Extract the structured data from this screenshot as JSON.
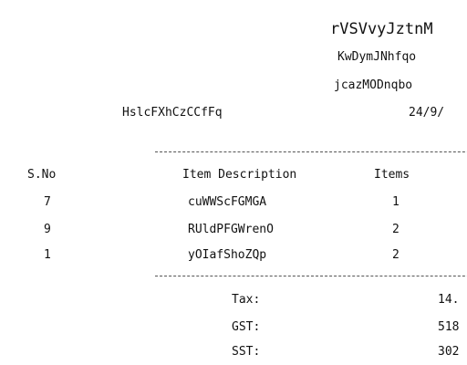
{
  "receipt": {
    "title": "rVSVvyJztnM",
    "line1": "KwDymJNhfqo",
    "line2": "jcazMODnqbo",
    "left_header": "HslcFXhCzCCfFq",
    "date": "24/9/"
  },
  "table": {
    "headers": {
      "sn": "S.No",
      "desc": "Item Description",
      "items": "Items"
    },
    "rows": [
      {
        "sn": "7",
        "desc": "cuWWScFGMGA",
        "items": "1"
      },
      {
        "sn": "9",
        "desc": "RUldPFGWrenO",
        "items": "2"
      },
      {
        "sn": "1",
        "desc": "yOIafShoZQp",
        "items": "2"
      }
    ]
  },
  "summary": [
    {
      "label": "Tax:",
      "value": "14."
    },
    {
      "label": "GST:",
      "value": "518"
    },
    {
      "label": "SST:",
      "value": "302"
    }
  ]
}
